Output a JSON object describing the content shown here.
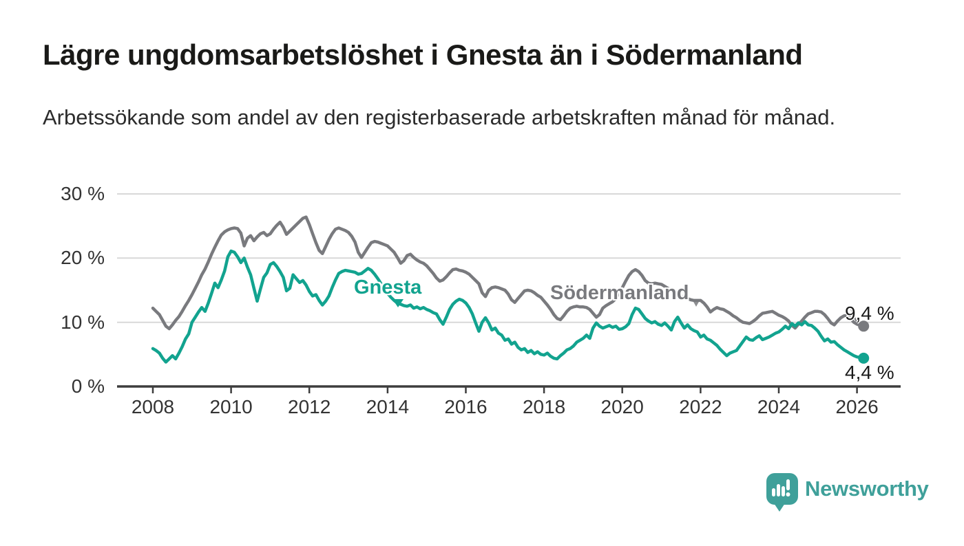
{
  "chart_data": {
    "type": "line",
    "title": "Lägre ungdomsarbetslöshet i Gnesta än i Södermanland",
    "subtitle": "Arbetssökande som andel av den registerbaserade arbetskraften månad för månad.",
    "x_unit": "month",
    "x_start": "2008-01",
    "x_end": "2026-03",
    "ylim": [
      0,
      30
    ],
    "grid": "horizontal",
    "legend_position": "inline-labels",
    "y_tick_labels": [
      "30 %",
      "20 %",
      "10 %",
      "0 %"
    ],
    "x_tick_labels": [
      "2008",
      "2010",
      "2012",
      "2014",
      "2016",
      "2018",
      "2020",
      "2022",
      "2024",
      "2026"
    ],
    "series": [
      {
        "name": "Södermanland",
        "color": "#797a7e",
        "end_label": "9,4 %",
        "end_value": 9.4,
        "values": [
          12.2,
          11.7,
          11.2,
          10.3,
          9.4,
          9.0,
          9.6,
          10.3,
          10.9,
          11.7,
          12.6,
          13.4,
          14.3,
          15.3,
          16.3,
          17.4,
          18.3,
          19.4,
          20.6,
          21.7,
          22.7,
          23.6,
          24.1,
          24.4,
          24.6,
          24.7,
          24.6,
          23.9,
          21.9,
          23.1,
          23.5,
          22.7,
          23.3,
          23.8,
          24.0,
          23.5,
          23.8,
          24.5,
          25.1,
          25.6,
          24.8,
          23.7,
          24.2,
          24.7,
          25.2,
          25.7,
          26.2,
          26.4,
          25.2,
          23.8,
          22.4,
          21.2,
          20.7,
          21.8,
          22.9,
          23.8,
          24.5,
          24.7,
          24.5,
          24.3,
          24.0,
          23.4,
          22.5,
          20.9,
          20.1,
          20.9,
          21.7,
          22.4,
          22.6,
          22.5,
          22.3,
          22.1,
          21.9,
          21.4,
          20.9,
          20.1,
          19.2,
          19.6,
          20.4,
          20.6,
          20.1,
          19.7,
          19.4,
          19.2,
          18.8,
          18.2,
          17.6,
          16.9,
          16.4,
          16.6,
          17.1,
          17.7,
          18.2,
          18.3,
          18.1,
          18.0,
          17.8,
          17.5,
          17.0,
          16.5,
          16.0,
          14.6,
          14.0,
          15.0,
          15.4,
          15.5,
          15.4,
          15.2,
          15.0,
          14.4,
          13.5,
          13.1,
          13.7,
          14.3,
          14.9,
          15.0,
          14.9,
          14.6,
          14.2,
          13.9,
          13.3,
          12.7,
          12.0,
          11.2,
          10.6,
          10.4,
          11.0,
          11.7,
          12.2,
          12.4,
          12.5,
          12.4,
          12.4,
          12.3,
          12.0,
          11.4,
          10.8,
          11.2,
          12.2,
          12.6,
          12.9,
          13.2,
          13.7,
          14.6,
          15.4,
          16.4,
          17.3,
          17.9,
          18.2,
          17.9,
          17.3,
          16.5,
          16.1,
          16.0,
          16.1,
          16.0,
          15.9,
          15.6,
          15.3,
          15.0,
          14.7,
          14.4,
          14.1,
          13.9,
          13.7,
          13.5,
          13.4,
          13.4,
          13.4,
          13.0,
          12.4,
          11.6,
          12.0,
          12.3,
          12.1,
          12.0,
          11.7,
          11.4,
          11.0,
          10.7,
          10.3,
          10.0,
          9.9,
          9.8,
          10.1,
          10.5,
          11.0,
          11.4,
          11.5,
          11.6,
          11.7,
          11.4,
          11.1,
          10.9,
          10.6,
          10.2,
          9.5,
          9.1,
          9.7,
          10.2,
          10.8,
          11.3,
          11.5,
          11.7,
          11.7,
          11.6,
          11.2,
          10.6,
          9.9,
          9.6,
          10.2,
          10.7,
          11.0,
          11.1,
          10.6,
          10.0,
          9.7,
          9.5,
          9.4
        ]
      },
      {
        "name": "Gnesta",
        "color": "#12a38f",
        "end_label": "4,4 %",
        "end_value": 4.4,
        "values": [
          5.9,
          5.6,
          5.2,
          4.4,
          3.8,
          4.3,
          4.8,
          4.3,
          5.2,
          6.2,
          7.4,
          8.2,
          10.0,
          10.8,
          11.6,
          12.3,
          11.7,
          13.0,
          14.5,
          16.1,
          15.4,
          16.6,
          18.0,
          20.2,
          21.1,
          20.9,
          20.2,
          19.3,
          20.0,
          18.6,
          17.4,
          15.3,
          13.3,
          15.2,
          17.0,
          17.7,
          19.0,
          19.3,
          18.7,
          17.9,
          17.0,
          14.9,
          15.3,
          17.4,
          16.8,
          16.2,
          16.5,
          15.8,
          14.8,
          14.1,
          14.3,
          13.4,
          12.7,
          13.3,
          14.1,
          15.4,
          16.6,
          17.6,
          17.9,
          18.1,
          18.0,
          17.9,
          17.8,
          17.5,
          17.6,
          18.0,
          18.4,
          18.1,
          17.5,
          16.8,
          16.0,
          15.2,
          14.5,
          13.9,
          13.4,
          13.0,
          12.8,
          12.6,
          12.5,
          12.7,
          12.2,
          12.4,
          12.1,
          12.3,
          12.0,
          11.8,
          11.5,
          11.3,
          10.4,
          9.7,
          10.8,
          12.0,
          12.8,
          13.3,
          13.6,
          13.4,
          13.0,
          12.3,
          11.3,
          9.9,
          8.6,
          10.0,
          10.7,
          9.9,
          8.8,
          9.1,
          8.3,
          8.0,
          7.2,
          7.4,
          6.6,
          6.9,
          6.1,
          5.7,
          5.9,
          5.3,
          5.6,
          5.1,
          5.4,
          5.0,
          4.9,
          5.2,
          4.7,
          4.4,
          4.3,
          4.8,
          5.2,
          5.7,
          5.9,
          6.3,
          6.9,
          7.2,
          7.5,
          8.0,
          7.5,
          9.1,
          9.9,
          9.4,
          9.1,
          9.3,
          9.5,
          9.2,
          9.4,
          8.9,
          9.0,
          9.3,
          9.8,
          11.2,
          12.2,
          12.0,
          11.3,
          10.6,
          10.2,
          9.9,
          10.1,
          9.7,
          9.5,
          9.9,
          9.4,
          8.8,
          10.1,
          10.8,
          9.9,
          9.1,
          9.6,
          9.0,
          8.7,
          8.5,
          7.7,
          8.0,
          7.4,
          7.2,
          6.8,
          6.4,
          5.8,
          5.3,
          4.8,
          5.2,
          5.4,
          5.6,
          6.3,
          7.0,
          7.7,
          7.3,
          7.2,
          7.6,
          7.9,
          7.3,
          7.5,
          7.7,
          8.0,
          8.3,
          8.5,
          8.9,
          9.4,
          9.0,
          9.8,
          9.4,
          9.9,
          9.6,
          10.1,
          9.6,
          9.5,
          9.1,
          8.6,
          7.8,
          7.1,
          7.4,
          6.9,
          7.0,
          6.5,
          6.1,
          5.7,
          5.4,
          5.1,
          4.8,
          4.6,
          4.5,
          4.4
        ]
      }
    ]
  },
  "footer": {
    "brand": "Newsworthy",
    "brand_color": "#3fa09a"
  }
}
